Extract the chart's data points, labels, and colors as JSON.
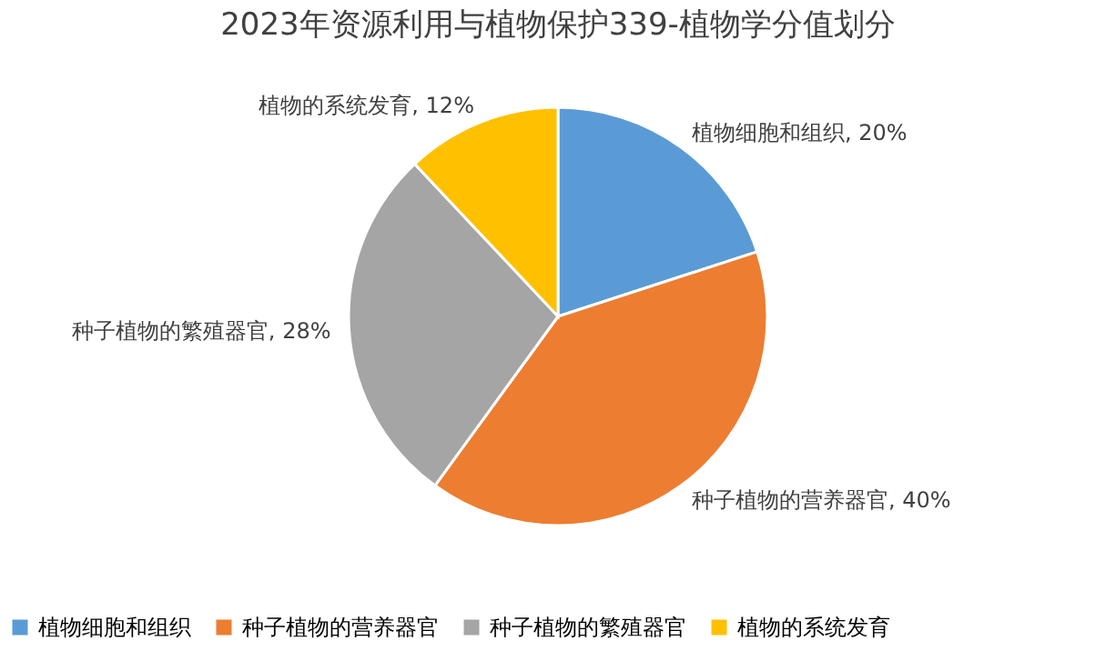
{
  "chart_data": {
    "type": "pie",
    "title": "2023年资源利用与植物保护339-植物学分值划分",
    "categories": [
      "植物细胞和组织",
      "种子植物的营养器官",
      "种子植物的繁殖器官",
      "植物的系统发育"
    ],
    "values": [
      20,
      40,
      28,
      12
    ],
    "colors": [
      "#5b9bd5",
      "#ed7d31",
      "#a5a5a5",
      "#ffc000"
    ],
    "value_labels": [
      "植物细胞和组织, 20%",
      "种子植物的营养器官, 40%",
      "种子植物的繁殖器官, 28%",
      "植物的系统发育, 12%"
    ],
    "legend": "bottom"
  }
}
